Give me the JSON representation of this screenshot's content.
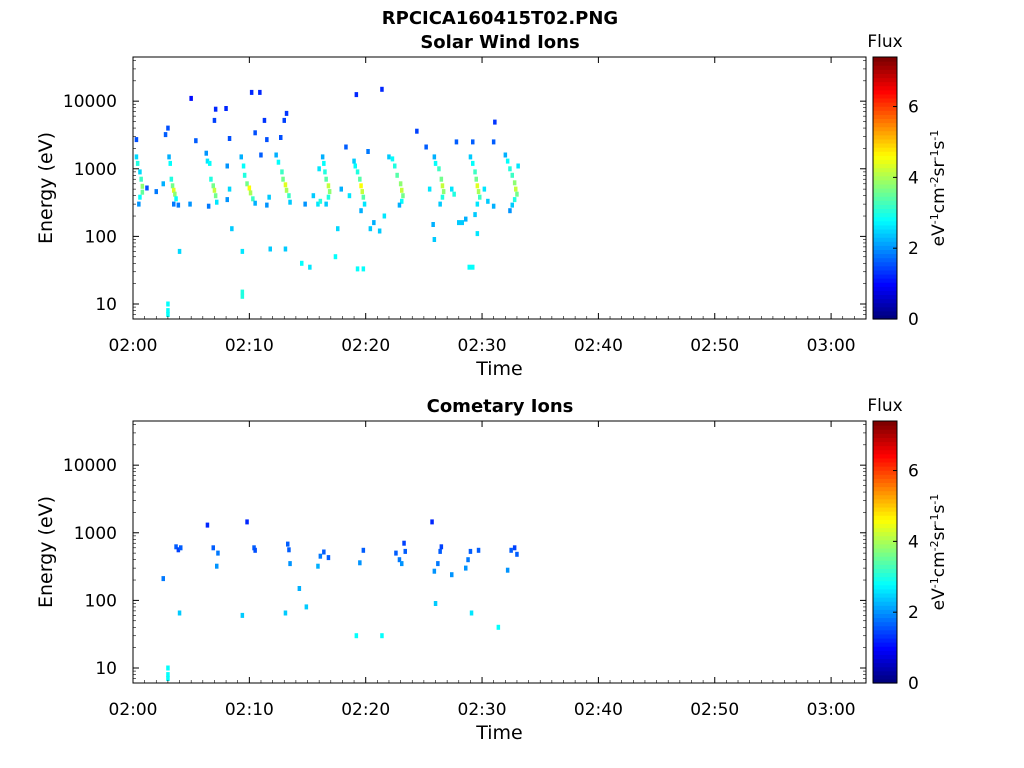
{
  "figure": {
    "title": "RPCICA160415T02.PNG"
  },
  "chart_data": [
    {
      "type": "heatmap",
      "title": "Solar Wind Ions",
      "xlabel": "Time",
      "ylabel": "Energy (eV)",
      "x_range": [
        "02:00",
        "03:03"
      ],
      "y_range": [
        6,
        45000
      ],
      "y_scale": "log",
      "x_ticks": [
        "02:00",
        "02:10",
        "02:20",
        "02:30",
        "02:40",
        "02:50",
        "03:00"
      ],
      "y_ticks": [
        "10",
        "100",
        "1000",
        "10000"
      ],
      "grid": false,
      "colorbar": {
        "title": "Flux",
        "label_parts": [
          "eV",
          "-1",
          "cm",
          "-2",
          "sr",
          "-1",
          "s",
          "-1"
        ],
        "range": [
          0,
          7.4
        ],
        "ticks": [
          "0",
          "2",
          "4",
          "6"
        ],
        "colormap": "jet"
      },
      "cells": [
        [
          0.3,
          1500,
          2.5
        ],
        [
          0.4,
          1200,
          3.0
        ],
        [
          0.6,
          900,
          2.5
        ],
        [
          0.7,
          700,
          3.2
        ],
        [
          0.8,
          550,
          3.8
        ],
        [
          0.8,
          450,
          3.5
        ],
        [
          0.6,
          380,
          2.8
        ],
        [
          0.5,
          300,
          2.0
        ],
        [
          0.3,
          2700,
          1.5
        ],
        [
          1.2,
          520,
          1.5
        ],
        [
          2.0,
          460,
          1.8
        ],
        [
          2.6,
          600,
          2.2
        ],
        [
          2.8,
          3200,
          1.6
        ],
        [
          3.0,
          4000,
          1.5
        ],
        [
          3.1,
          1500,
          2.2
        ],
        [
          3.2,
          1200,
          2.8
        ],
        [
          3.3,
          700,
          3.0
        ],
        [
          3.4,
          560,
          3.6
        ],
        [
          3.5,
          480,
          4.4
        ],
        [
          3.6,
          420,
          3.8
        ],
        [
          3.7,
          360,
          2.8
        ],
        [
          3.5,
          300,
          1.8
        ],
        [
          3.0,
          10,
          2.8
        ],
        [
          3.0,
          8,
          2.8
        ],
        [
          3.0,
          7,
          2.8
        ],
        [
          4.0,
          60,
          2.5
        ],
        [
          3.9,
          290,
          1.8
        ],
        [
          5.0,
          11000,
          1.0
        ],
        [
          4.9,
          300,
          2.0
        ],
        [
          5.4,
          2600,
          1.6
        ],
        [
          6.3,
          1700,
          2.0
        ],
        [
          6.4,
          1300,
          2.6
        ],
        [
          6.6,
          1200,
          2.8
        ],
        [
          6.7,
          700,
          3.0
        ],
        [
          6.9,
          560,
          3.6
        ],
        [
          7.0,
          480,
          4.2
        ],
        [
          7.1,
          400,
          3.6
        ],
        [
          7.2,
          320,
          2.6
        ],
        [
          7.0,
          5200,
          1.4
        ],
        [
          7.1,
          7600,
          1.2
        ],
        [
          6.5,
          280,
          1.8
        ],
        [
          8.0,
          7800,
          1.2
        ],
        [
          8.1,
          1100,
          2.0
        ],
        [
          8.3,
          500,
          2.5
        ],
        [
          8.1,
          350,
          2.0
        ],
        [
          8.5,
          130,
          2.4
        ],
        [
          8.3,
          2800,
          1.5
        ],
        [
          9.3,
          1500,
          2.2
        ],
        [
          9.5,
          1100,
          2.8
        ],
        [
          9.6,
          800,
          3.0
        ],
        [
          9.8,
          600,
          3.6
        ],
        [
          10.0,
          520,
          4.6
        ],
        [
          10.1,
          440,
          4.0
        ],
        [
          10.3,
          360,
          3.2
        ],
        [
          10.5,
          310,
          2.2
        ],
        [
          9.4,
          15,
          3.0
        ],
        [
          9.4,
          13,
          3.0
        ],
        [
          9.4,
          60,
          2.6
        ],
        [
          10.2,
          13500,
          1.2
        ],
        [
          10.9,
          13500,
          1.2
        ],
        [
          10.5,
          3400,
          1.5
        ],
        [
          11.0,
          1600,
          1.6
        ],
        [
          11.3,
          5200,
          1.3
        ],
        [
          11.5,
          2700,
          1.5
        ],
        [
          11.5,
          290,
          2.0
        ],
        [
          11.7,
          380,
          2.4
        ],
        [
          11.8,
          65,
          2.4
        ],
        [
          12.3,
          1600,
          2.2
        ],
        [
          12.5,
          1250,
          2.8
        ],
        [
          12.8,
          900,
          3.2
        ],
        [
          12.9,
          700,
          3.6
        ],
        [
          13.1,
          580,
          4.4
        ],
        [
          13.2,
          480,
          4.0
        ],
        [
          13.4,
          400,
          3.2
        ],
        [
          13.5,
          320,
          2.4
        ],
        [
          13.0,
          5200,
          1.4
        ],
        [
          13.2,
          6600,
          1.3
        ],
        [
          12.7,
          2900,
          1.5
        ],
        [
          13.1,
          65,
          2.4
        ],
        [
          14.5,
          40,
          2.8
        ],
        [
          15.2,
          35,
          2.6
        ],
        [
          14.8,
          300,
          2.0
        ],
        [
          15.5,
          400,
          2.4
        ],
        [
          15.9,
          300,
          2.6
        ],
        [
          16.1,
          330,
          3.0
        ],
        [
          16.3,
          1500,
          2.2
        ],
        [
          16.4,
          1200,
          2.8
        ],
        [
          16.5,
          900,
          3.0
        ],
        [
          16.6,
          700,
          3.4
        ],
        [
          16.8,
          560,
          4.2
        ],
        [
          16.9,
          460,
          3.8
        ],
        [
          16.8,
          380,
          3.0
        ],
        [
          16.6,
          300,
          2.4
        ],
        [
          16.0,
          1000,
          2.6
        ],
        [
          17.4,
          50,
          2.8
        ],
        [
          17.6,
          130,
          2.5
        ],
        [
          17.9,
          500,
          2.2
        ],
        [
          18.3,
          2100,
          1.6
        ],
        [
          18.6,
          400,
          2.6
        ],
        [
          19.0,
          1300,
          2.4
        ],
        [
          19.1,
          1100,
          2.8
        ],
        [
          19.3,
          900,
          3.0
        ],
        [
          19.5,
          700,
          3.4
        ],
        [
          19.6,
          560,
          4.6
        ],
        [
          19.7,
          460,
          4.2
        ],
        [
          19.8,
          380,
          3.4
        ],
        [
          19.9,
          300,
          2.6
        ],
        [
          19.6,
          240,
          2.2
        ],
        [
          19.3,
          33,
          2.8
        ],
        [
          19.8,
          33,
          2.8
        ],
        [
          19.2,
          12500,
          1.2
        ],
        [
          20.2,
          1800,
          1.8
        ],
        [
          20.4,
          130,
          2.4
        ],
        [
          20.7,
          160,
          2.2
        ],
        [
          21.2,
          120,
          2.4
        ],
        [
          21.4,
          15000,
          1.2
        ],
        [
          21.6,
          200,
          2.6
        ],
        [
          22.0,
          1500,
          2.4
        ],
        [
          22.3,
          1400,
          2.8
        ],
        [
          22.5,
          1100,
          3.0
        ],
        [
          22.7,
          800,
          3.4
        ],
        [
          23.0,
          600,
          3.8
        ],
        [
          23.1,
          480,
          4.2
        ],
        [
          23.2,
          400,
          3.6
        ],
        [
          23.1,
          330,
          2.8
        ],
        [
          22.9,
          290,
          2.2
        ],
        [
          24.4,
          3600,
          1.4
        ],
        [
          25.2,
          2100,
          1.6
        ],
        [
          25.5,
          500,
          2.6
        ],
        [
          25.9,
          1500,
          2.2
        ],
        [
          26.0,
          1200,
          2.8
        ],
        [
          26.3,
          1000,
          3.2
        ],
        [
          26.5,
          700,
          3.6
        ],
        [
          26.6,
          560,
          4.2
        ],
        [
          26.7,
          460,
          3.8
        ],
        [
          26.6,
          380,
          3.0
        ],
        [
          26.4,
          300,
          2.4
        ],
        [
          25.9,
          90,
          2.4
        ],
        [
          25.8,
          150,
          2.2
        ],
        [
          27.4,
          500,
          2.6
        ],
        [
          27.6,
          420,
          3.0
        ],
        [
          27.8,
          2500,
          1.6
        ],
        [
          28.0,
          160,
          2.4
        ],
        [
          28.3,
          160,
          2.4
        ],
        [
          28.6,
          180,
          2.2
        ],
        [
          28.9,
          35,
          2.8
        ],
        [
          29.2,
          35,
          2.8
        ],
        [
          29.0,
          1500,
          2.4
        ],
        [
          29.2,
          1200,
          2.8
        ],
        [
          29.4,
          900,
          3.2
        ],
        [
          29.5,
          700,
          3.6
        ],
        [
          29.6,
          560,
          4.4
        ],
        [
          29.7,
          460,
          4.0
        ],
        [
          29.8,
          380,
          3.2
        ],
        [
          29.6,
          300,
          2.6
        ],
        [
          29.2,
          2500,
          1.6
        ],
        [
          29.4,
          210,
          2.4
        ],
        [
          29.6,
          110,
          2.6
        ],
        [
          30.2,
          500,
          2.6
        ],
        [
          30.5,
          330,
          2.4
        ],
        [
          31.0,
          2500,
          1.6
        ],
        [
          31.0,
          280,
          2.2
        ],
        [
          31.1,
          4900,
          1.3
        ],
        [
          32.0,
          1600,
          2.2
        ],
        [
          32.2,
          1300,
          2.8
        ],
        [
          32.4,
          1000,
          3.0
        ],
        [
          32.6,
          800,
          3.2
        ],
        [
          32.8,
          620,
          3.8
        ],
        [
          32.9,
          500,
          4.2
        ],
        [
          33.0,
          420,
          3.6
        ],
        [
          32.8,
          350,
          3.0
        ],
        [
          32.6,
          290,
          2.4
        ],
        [
          32.4,
          240,
          2.0
        ],
        [
          33.1,
          1100,
          2.6
        ]
      ]
    },
    {
      "type": "heatmap",
      "title": "Cometary Ions",
      "xlabel": "Time",
      "ylabel": "Energy (eV)",
      "x_range": [
        "02:00",
        "03:03"
      ],
      "y_range": [
        6,
        45000
      ],
      "y_scale": "log",
      "x_ticks": [
        "02:00",
        "02:10",
        "02:20",
        "02:30",
        "02:40",
        "02:50",
        "03:00"
      ],
      "y_ticks": [
        "10",
        "100",
        "1000",
        "10000"
      ],
      "grid": false,
      "colorbar": {
        "title": "Flux",
        "label_parts": [
          "eV",
          "-1",
          "cm",
          "-2",
          "sr",
          "-1",
          "s",
          "-1"
        ],
        "range": [
          0,
          7.4
        ],
        "ticks": [
          "0",
          "2",
          "4",
          "6"
        ],
        "colormap": "jet"
      },
      "cells": [
        [
          2.6,
          210,
          1.8
        ],
        [
          3.0,
          10,
          2.8
        ],
        [
          3.0,
          8,
          2.8
        ],
        [
          3.0,
          7,
          2.8
        ],
        [
          3.7,
          620,
          1.6
        ],
        [
          3.9,
          560,
          1.4
        ],
        [
          4.1,
          600,
          1.6
        ],
        [
          4.0,
          65,
          2.4
        ],
        [
          6.4,
          1300,
          1.2
        ],
        [
          6.9,
          600,
          1.6
        ],
        [
          7.3,
          500,
          1.8
        ],
        [
          7.2,
          320,
          2.0
        ],
        [
          9.4,
          60,
          2.4
        ],
        [
          9.8,
          1450,
          1.2
        ],
        [
          10.4,
          600,
          1.6
        ],
        [
          10.5,
          550,
          1.5
        ],
        [
          13.1,
          65,
          2.4
        ],
        [
          13.3,
          680,
          1.6
        ],
        [
          13.4,
          560,
          1.6
        ],
        [
          13.5,
          350,
          2.0
        ],
        [
          14.3,
          150,
          2.2
        ],
        [
          14.9,
          80,
          2.4
        ],
        [
          15.9,
          320,
          2.2
        ],
        [
          16.1,
          450,
          1.8
        ],
        [
          16.4,
          520,
          1.6
        ],
        [
          16.8,
          430,
          1.6
        ],
        [
          19.2,
          30,
          2.8
        ],
        [
          19.5,
          360,
          2.0
        ],
        [
          19.8,
          550,
          1.6
        ],
        [
          21.4,
          30,
          2.8
        ],
        [
          22.6,
          500,
          1.6
        ],
        [
          22.9,
          400,
          1.8
        ],
        [
          23.1,
          350,
          2.0
        ],
        [
          23.3,
          700,
          1.4
        ],
        [
          23.4,
          530,
          1.6
        ],
        [
          25.7,
          1450,
          1.2
        ],
        [
          25.9,
          270,
          2.0
        ],
        [
          26.0,
          90,
          2.4
        ],
        [
          26.2,
          350,
          1.8
        ],
        [
          26.4,
          530,
          1.6
        ],
        [
          26.5,
          620,
          1.4
        ],
        [
          27.4,
          240,
          2.0
        ],
        [
          28.6,
          300,
          2.0
        ],
        [
          28.8,
          400,
          1.8
        ],
        [
          29.0,
          530,
          1.6
        ],
        [
          29.1,
          65,
          2.6
        ],
        [
          29.7,
          550,
          1.6
        ],
        [
          31.4,
          40,
          2.8
        ],
        [
          32.2,
          280,
          2.0
        ],
        [
          32.5,
          550,
          1.6
        ],
        [
          32.8,
          600,
          1.4
        ],
        [
          33.0,
          480,
          1.6
        ]
      ]
    }
  ]
}
